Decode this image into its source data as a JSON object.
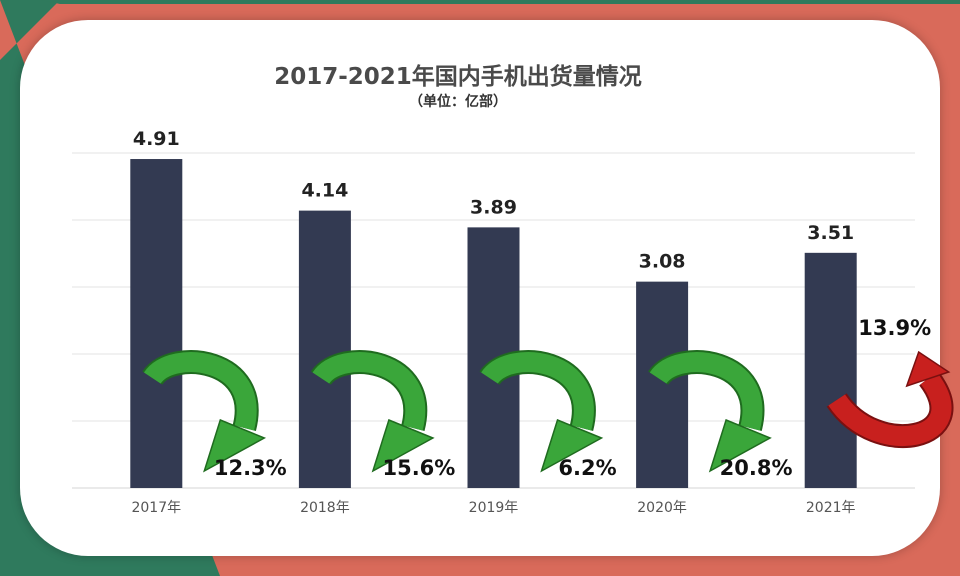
{
  "chart_data": {
    "type": "bar",
    "title": "2017-2021年国内手机出货量情况",
    "subtitle": "（单位：亿部）",
    "categories": [
      "2017年",
      "2018年",
      "2019年",
      "2020年",
      "2021年"
    ],
    "values": [
      4.91,
      4.14,
      3.89,
      3.08,
      3.51
    ],
    "value_labels": [
      "4.91",
      "4.14",
      "3.89",
      "3.08",
      "3.51"
    ],
    "ylim": [
      0,
      5
    ],
    "grid": true,
    "changes": [
      {
        "label": "12.3%",
        "direction": "down",
        "color": "#3aa63a"
      },
      {
        "label": "15.6%",
        "direction": "down",
        "color": "#3aa63a"
      },
      {
        "label": "6.2%",
        "direction": "down",
        "color": "#3aa63a"
      },
      {
        "label": "20.8%",
        "direction": "down",
        "color": "#3aa63a"
      },
      {
        "label": "13.9%",
        "direction": "up",
        "color": "#c8201e"
      }
    ],
    "bar_color": "#333a52"
  },
  "colors": {
    "frame_red": "#d96a5a",
    "frame_green": "#2f7a5d",
    "card": "#ffffff",
    "grid": "#e3e3e3"
  }
}
